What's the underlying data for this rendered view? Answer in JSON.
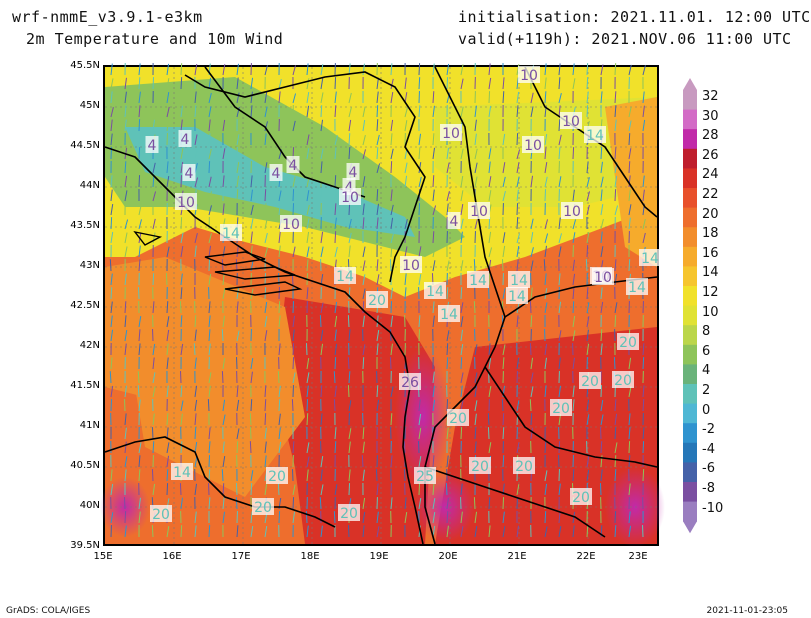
{
  "header": {
    "model": "wrf-nmmE_v3.9.1-e3km",
    "product": "2m Temperature and 10m Wind",
    "init": "initialisation: 2021.11.01. 12:00 UTC",
    "valid": "valid(+119h): 2021.NOV.06 11:00 UTC"
  },
  "axes": {
    "lat_labels": [
      "45.5N",
      "45N",
      "44.5N",
      "44N",
      "43.5N",
      "43N",
      "42.5N",
      "42N",
      "41.5N",
      "41N",
      "40.5N",
      "40N",
      "39.5N"
    ],
    "lon_labels": [
      "15E",
      "16E",
      "17E",
      "18E",
      "19E",
      "20E",
      "21E",
      "22E",
      "23E"
    ]
  },
  "colorbar": {
    "labels": [
      "32",
      "30",
      "28",
      "26",
      "24",
      "22",
      "20",
      "18",
      "16",
      "14",
      "12",
      "10",
      "8",
      "6",
      "4",
      "2",
      "0",
      "-2",
      "-4",
      "-6",
      "-8",
      "-10"
    ],
    "colors": [
      "#c89ac0",
      "#d36bc6",
      "#c12aa9",
      "#bf1e2d",
      "#d93227",
      "#e8502b",
      "#ee6e2d",
      "#f28d2c",
      "#f6ab2c",
      "#f6c52e",
      "#f1e12a",
      "#e0e234",
      "#bbd64a",
      "#8ec45a",
      "#6ab37a",
      "#5fc2b8",
      "#4fb7d4",
      "#2f93cf",
      "#2577b8",
      "#4561a8",
      "#7a4fa1",
      "#9a7ec0"
    ]
  },
  "map_labels": [
    {
      "text": "10"
    },
    {
      "text": "4"
    },
    {
      "text": "4"
    },
    {
      "text": "4"
    },
    {
      "text": "4"
    },
    {
      "text": "4"
    },
    {
      "text": "4"
    },
    {
      "text": "4"
    },
    {
      "text": "10"
    },
    {
      "text": "10"
    },
    {
      "text": "10"
    },
    {
      "text": "14"
    },
    {
      "text": "10"
    },
    {
      "text": "10"
    },
    {
      "text": "10"
    },
    {
      "text": "10"
    },
    {
      "text": "10"
    },
    {
      "text": "14"
    },
    {
      "text": "14"
    },
    {
      "text": "4"
    },
    {
      "text": "10"
    },
    {
      "text": "14"
    },
    {
      "text": "20"
    },
    {
      "text": "14"
    },
    {
      "text": "14"
    },
    {
      "text": "10"
    },
    {
      "text": "14"
    },
    {
      "text": "14"
    },
    {
      "text": "14"
    },
    {
      "text": "10"
    },
    {
      "text": "14"
    },
    {
      "text": "20"
    },
    {
      "text": "26"
    },
    {
      "text": "20"
    },
    {
      "text": "20"
    },
    {
      "text": "20"
    },
    {
      "text": "20"
    },
    {
      "text": "20"
    },
    {
      "text": "14"
    },
    {
      "text": "20"
    },
    {
      "text": "20"
    },
    {
      "text": "20"
    },
    {
      "text": "25"
    },
    {
      "text": "20"
    },
    {
      "text": "20"
    },
    {
      "text": "20"
    }
  ],
  "footer": {
    "left": "GrADS: COLA/IGES",
    "right": "2021-11-01-23:05"
  }
}
